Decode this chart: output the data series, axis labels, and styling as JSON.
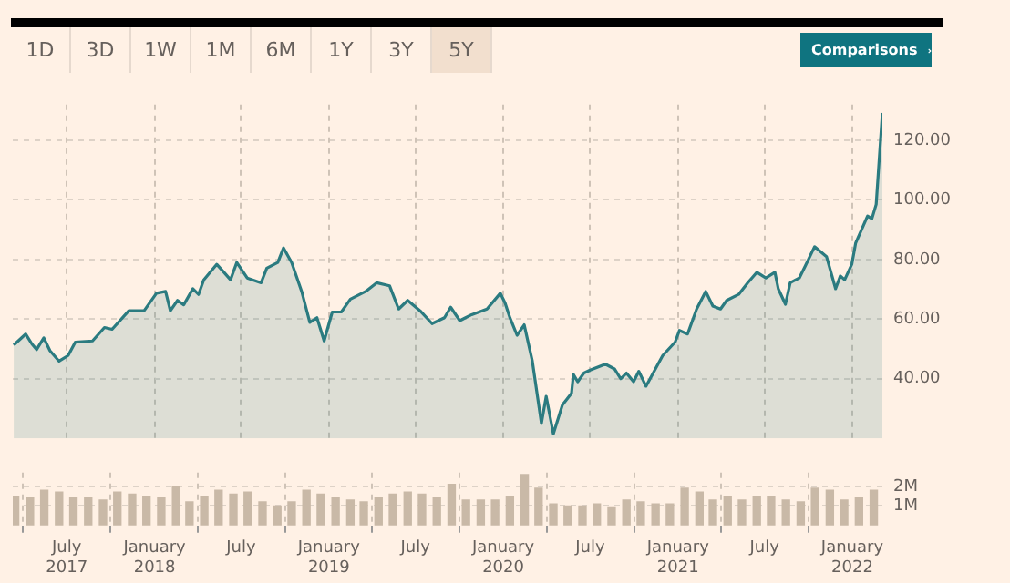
{
  "chart_data": [
    {
      "type": "area",
      "color": "#2b7b80",
      "annotations": [
        "1D",
        "3D",
        "1W",
        "1M",
        "6M",
        "1Y",
        "3Y",
        "5Y",
        "Comparisons"
      ],
      "x": [
        "2017-03-12",
        "2017-04-06",
        "2017-04-19",
        "2017-04-29",
        "2017-05-14",
        "2017-05-27",
        "2017-06-15",
        "2017-07-04",
        "2017-07-19",
        "2017-08-24",
        "2017-09-18",
        "2017-10-04",
        "2017-11-08",
        "2017-12-10",
        "2018-01-05",
        "2018-01-24",
        "2018-02-03",
        "2018-02-18",
        "2018-03-03",
        "2018-03-22",
        "2018-04-03",
        "2018-04-14",
        "2018-05-11",
        "2018-05-24",
        "2018-06-09",
        "2018-06-22",
        "2018-07-14",
        "2018-08-12",
        "2018-08-24",
        "2018-09-16",
        "2018-09-28",
        "2018-10-15",
        "2018-11-05",
        "2018-11-22",
        "2018-12-07",
        "2018-12-22",
        "2019-01-08",
        "2019-01-27",
        "2019-02-15",
        "2019-03-19",
        "2019-04-11",
        "2019-05-08",
        "2019-05-27",
        "2019-06-15",
        "2019-07-11",
        "2019-08-05",
        "2019-08-31",
        "2019-09-13",
        "2019-10-02",
        "2019-10-27",
        "2019-11-28",
        "2019-12-26",
        "2020-01-05",
        "2020-01-15",
        "2020-01-30",
        "2020-02-14",
        "2020-03-02",
        "2020-03-21",
        "2020-03-31",
        "2020-04-15",
        "2020-05-04",
        "2020-05-23",
        "2020-05-27",
        "2020-06-05",
        "2020-06-18",
        "2020-07-01",
        "2020-08-02",
        "2020-08-21",
        "2020-09-03",
        "2020-09-15",
        "2020-09-30",
        "2020-10-11",
        "2020-10-26",
        "2020-11-30",
        "2020-12-26",
        "2021-01-04",
        "2021-01-21",
        "2021-02-09",
        "2021-02-28",
        "2021-03-15",
        "2021-03-31",
        "2021-04-13",
        "2021-05-08",
        "2021-05-27",
        "2021-06-15",
        "2021-07-04",
        "2021-07-23",
        "2021-07-30",
        "2021-08-14",
        "2021-08-24",
        "2021-09-12",
        "2021-09-25",
        "2021-10-14",
        "2021-11-08",
        "2021-11-27",
        "2021-12-07",
        "2021-12-16",
        "2021-12-31",
        "2022-01-08",
        "2022-02-02",
        "2022-02-11",
        "2022-02-20",
        "2022-03-05"
      ],
      "values": [
        51.3,
        55,
        51.7,
        49.8,
        53.7,
        49.4,
        45.9,
        47.8,
        52.3,
        52.7,
        57.2,
        56.6,
        62.8,
        62.8,
        68.7,
        69.3,
        62.8,
        66.3,
        64.8,
        70.2,
        68.3,
        73.2,
        78.4,
        76.1,
        73.2,
        79,
        73.8,
        72.2,
        77.1,
        79,
        83.9,
        79,
        69.3,
        58.9,
        60.5,
        52.7,
        62.4,
        62.4,
        66.7,
        69.3,
        72.2,
        71.2,
        63.4,
        66.3,
        62.8,
        58.5,
        60.5,
        64,
        59.5,
        61.5,
        63.4,
        68.7,
        65.4,
        60.5,
        54.6,
        58.1,
        45.9,
        25,
        34.1,
        21.5,
        31.2,
        35.1,
        41.4,
        39,
        41.9,
        42.9,
        44.9,
        43.3,
        40,
        41.9,
        39,
        42.5,
        37.5,
        47.8,
        52.3,
        56.2,
        55,
        63.4,
        69.3,
        64.4,
        63.4,
        66.3,
        68.3,
        72.2,
        75.7,
        73.8,
        75.7,
        70.2,
        65,
        72.2,
        73.8,
        78,
        84.3,
        81,
        70.2,
        74.5,
        73.2,
        78.4,
        85.5,
        94.6,
        93.7,
        98.5,
        129.2
      ],
      "xlim": [
        "2017-03-10",
        "2022-03-05"
      ],
      "ylim": [
        20,
        132
      ],
      "xticks": [
        "2017-07-01",
        "2018-01-01",
        "2018-07-01",
        "2019-01-01",
        "2019-07-01",
        "2020-01-01",
        "2020-07-01",
        "2021-01-01",
        "2021-07-01",
        "2022-01-01"
      ],
      "yticks": [
        {
          "value": 40,
          "label": "40.00"
        },
        {
          "value": 60,
          "label": "60.00"
        },
        {
          "value": 80,
          "label": "80.00"
        },
        {
          "value": 100,
          "label": "100.00"
        },
        {
          "value": 120,
          "label": "120.00"
        }
      ],
      "grid": true,
      "tick_labels": "y"
    },
    {
      "type": "bar",
      "color": "#c9b9a7",
      "x": [
        "2017-03-15",
        "2017-04-15",
        "2017-05-15",
        "2017-06-15",
        "2017-07-15",
        "2017-08-15",
        "2017-09-15",
        "2017-10-15",
        "2017-11-15",
        "2017-12-15",
        "2018-01-15",
        "2018-02-15",
        "2018-03-15",
        "2018-04-15",
        "2018-05-15",
        "2018-06-15",
        "2018-07-15",
        "2018-08-15",
        "2018-09-15",
        "2018-10-15",
        "2018-11-15",
        "2018-12-15",
        "2019-01-15",
        "2019-02-15",
        "2019-03-15",
        "2019-04-15",
        "2019-05-15",
        "2019-06-15",
        "2019-07-15",
        "2019-08-15",
        "2019-09-15",
        "2019-10-15",
        "2019-11-15",
        "2019-12-15",
        "2020-01-15",
        "2020-02-15",
        "2020-03-15",
        "2020-04-15",
        "2020-05-15",
        "2020-06-15",
        "2020-07-15",
        "2020-08-15",
        "2020-09-15",
        "2020-10-15",
        "2020-11-15",
        "2020-12-15",
        "2021-01-15",
        "2021-02-15",
        "2021-03-15",
        "2021-04-15",
        "2021-05-15",
        "2021-06-15",
        "2021-07-15",
        "2021-08-15",
        "2021-09-15",
        "2021-10-15",
        "2021-11-15",
        "2021-12-15",
        "2022-01-15",
        "2022-02-15"
      ],
      "values": [
        1.5,
        1.4,
        1.8,
        1.7,
        1.4,
        1.4,
        1.3,
        1.7,
        1.6,
        1.5,
        1.4,
        2.0,
        1.2,
        1.5,
        1.8,
        1.6,
        1.7,
        1.2,
        1.0,
        1.2,
        1.8,
        1.6,
        1.4,
        1.3,
        1.2,
        1.4,
        1.6,
        1.7,
        1.6,
        1.4,
        2.1,
        1.3,
        1.3,
        1.3,
        1.5,
        2.6,
        1.9,
        1.1,
        1.0,
        1.0,
        1.1,
        0.9,
        1.3,
        1.2,
        1.1,
        1.1,
        1.9,
        1.7,
        1.3,
        1.5,
        1.3,
        1.5,
        1.5,
        1.3,
        1.2,
        1.9,
        1.8,
        1.3,
        1.4,
        1.8
      ],
      "xlim": [
        "2017-03-10",
        "2022-03-05"
      ],
      "ylim": [
        0,
        2.7
      ],
      "xticks": [
        {
          "value": "2017-07-01",
          "label": "July 2017"
        },
        {
          "value": "2018-01-01",
          "label": "January 2018"
        },
        {
          "value": "2018-07-01",
          "label": "July"
        },
        {
          "value": "2019-01-01",
          "label": "January 2019"
        },
        {
          "value": "2019-07-01",
          "label": "July"
        },
        {
          "value": "2020-01-01",
          "label": "January 2020"
        },
        {
          "value": "2020-07-01",
          "label": "July"
        },
        {
          "value": "2021-01-01",
          "label": "January 2021"
        },
        {
          "value": "2021-07-01",
          "label": "July"
        },
        {
          "value": "2022-01-01",
          "label": "January 2022"
        }
      ],
      "yticks": [
        {
          "value": 1,
          "label": "1M"
        },
        {
          "value": 2,
          "label": "2M"
        }
      ],
      "grid": true
    }
  ]
}
